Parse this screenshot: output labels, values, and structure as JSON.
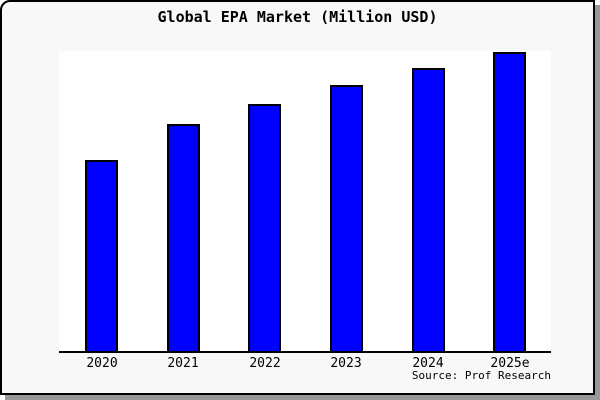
{
  "card": {
    "background": "#f8f8f8",
    "border_color": "#000000",
    "shadow_color": "#999999"
  },
  "title": "Global EPA Market (Million USD)",
  "source_note": "Source: Prof Research",
  "chart_data": {
    "type": "bar",
    "title": "Global EPA Market (Million USD)",
    "categories": [
      "2020",
      "2021",
      "2022",
      "2023",
      "2024",
      "2025e"
    ],
    "values": [
      63.9,
      75.9,
      82.6,
      89.0,
      94.6,
      100
    ],
    "value_note": "no y-axis scale shown; values estimated from bar heights relative to 2025e = 100",
    "xlabel": "",
    "ylabel": "",
    "grid": false,
    "legend": "none",
    "bar_color": "#0000FF",
    "bar_border_color": "#000000",
    "plot_background": "#ffffff",
    "axis_color": "#000000"
  }
}
